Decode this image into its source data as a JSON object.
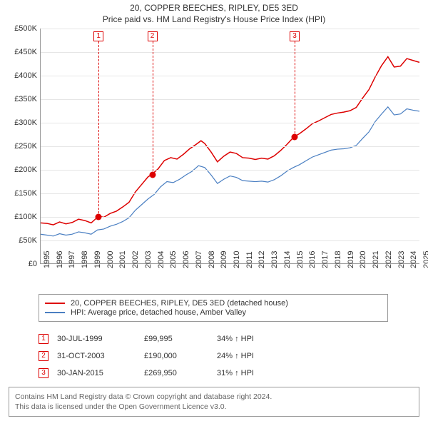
{
  "title": {
    "line1": "20, COPPER BEECHES, RIPLEY, DE5 3ED",
    "line2": "Price paid vs. HM Land Registry's House Price Index (HPI)"
  },
  "chart": {
    "type": "line",
    "x_start_year": 1995,
    "x_end_year": 2025,
    "x_ticks": [
      1995,
      1996,
      1997,
      1998,
      1999,
      2000,
      2001,
      2002,
      2003,
      2004,
      2005,
      2006,
      2007,
      2008,
      2009,
      2010,
      2011,
      2012,
      2013,
      2014,
      2015,
      2016,
      2017,
      2018,
      2019,
      2020,
      2021,
      2022,
      2023,
      2024,
      2025
    ],
    "y_min": 0,
    "y_max": 500000,
    "y_tick_step": 50000,
    "y_tick_labels": [
      "£0",
      "£50K",
      "£100K",
      "£150K",
      "£200K",
      "£250K",
      "£300K",
      "£350K",
      "£400K",
      "£450K",
      "£500K"
    ],
    "grid_color": "#e6e6e6",
    "axis_color": "#999999",
    "background_color": "#ffffff",
    "series": [
      {
        "name": "property_price",
        "label": "20, COPPER BEECHES, RIPLEY, DE5 3ED (detached house)",
        "color": "#dd0000",
        "line_width": 1.5,
        "data": [
          [
            1995.0,
            86
          ],
          [
            1995.5,
            85
          ],
          [
            1996.0,
            82
          ],
          [
            1996.5,
            88
          ],
          [
            1997.0,
            84
          ],
          [
            1997.5,
            87
          ],
          [
            1998.0,
            94
          ],
          [
            1998.5,
            91
          ],
          [
            1999.0,
            86
          ],
          [
            1999.58,
            100
          ],
          [
            2000.0,
            98
          ],
          [
            2000.5,
            106
          ],
          [
            2001.0,
            111
          ],
          [
            2001.5,
            120
          ],
          [
            2002.0,
            130
          ],
          [
            2002.5,
            152
          ],
          [
            2003.0,
            168
          ],
          [
            2003.5,
            184
          ],
          [
            2003.83,
            190
          ],
          [
            2004.3,
            201
          ],
          [
            2004.8,
            219
          ],
          [
            2005.3,
            225
          ],
          [
            2005.8,
            222
          ],
          [
            2006.3,
            232
          ],
          [
            2006.8,
            244
          ],
          [
            2007.3,
            253
          ],
          [
            2007.7,
            261
          ],
          [
            2008.0,
            255
          ],
          [
            2008.5,
            237
          ],
          [
            2009.0,
            216
          ],
          [
            2009.5,
            228
          ],
          [
            2010.0,
            237
          ],
          [
            2010.5,
            234
          ],
          [
            2011.0,
            225
          ],
          [
            2011.5,
            224
          ],
          [
            2012.0,
            221
          ],
          [
            2012.5,
            224
          ],
          [
            2013.0,
            222
          ],
          [
            2013.5,
            229
          ],
          [
            2014.0,
            240
          ],
          [
            2014.5,
            253
          ],
          [
            2015.08,
            270
          ],
          [
            2015.5,
            276
          ],
          [
            2016.0,
            286
          ],
          [
            2016.5,
            297
          ],
          [
            2017.0,
            303
          ],
          [
            2017.5,
            310
          ],
          [
            2018.0,
            317
          ],
          [
            2018.5,
            320
          ],
          [
            2019.0,
            322
          ],
          [
            2019.5,
            325
          ],
          [
            2020.0,
            332
          ],
          [
            2020.5,
            352
          ],
          [
            2021.0,
            370
          ],
          [
            2021.5,
            397
          ],
          [
            2022.0,
            421
          ],
          [
            2022.5,
            440
          ],
          [
            2023.0,
            418
          ],
          [
            2023.5,
            420
          ],
          [
            2024.0,
            436
          ],
          [
            2024.5,
            432
          ],
          [
            2025.0,
            428
          ]
        ]
      },
      {
        "name": "hpi",
        "label": "HPI: Average price, detached house, Amber Valley",
        "color": "#4a7fc2",
        "line_width": 1.2,
        "data": [
          [
            1995.0,
            62
          ],
          [
            1995.5,
            60
          ],
          [
            1996.0,
            58
          ],
          [
            1996.5,
            63
          ],
          [
            1997.0,
            60
          ],
          [
            1997.5,
            62
          ],
          [
            1998.0,
            67
          ],
          [
            1998.5,
            65
          ],
          [
            1999.0,
            62
          ],
          [
            1999.5,
            71
          ],
          [
            2000.0,
            73
          ],
          [
            2000.5,
            79
          ],
          [
            2001.0,
            83
          ],
          [
            2001.5,
            89
          ],
          [
            2002.0,
            97
          ],
          [
            2002.5,
            113
          ],
          [
            2003.0,
            125
          ],
          [
            2003.5,
            137
          ],
          [
            2004.0,
            147
          ],
          [
            2004.5,
            163
          ],
          [
            2005.0,
            174
          ],
          [
            2005.5,
            172
          ],
          [
            2006.0,
            179
          ],
          [
            2006.5,
            188
          ],
          [
            2007.0,
            196
          ],
          [
            2007.5,
            208
          ],
          [
            2008.0,
            204
          ],
          [
            2008.5,
            188
          ],
          [
            2009.0,
            170
          ],
          [
            2009.5,
            179
          ],
          [
            2010.0,
            186
          ],
          [
            2010.5,
            183
          ],
          [
            2011.0,
            176
          ],
          [
            2011.5,
            175
          ],
          [
            2012.0,
            174
          ],
          [
            2012.5,
            175
          ],
          [
            2013.0,
            173
          ],
          [
            2013.5,
            178
          ],
          [
            2014.0,
            186
          ],
          [
            2014.5,
            196
          ],
          [
            2015.0,
            204
          ],
          [
            2015.5,
            210
          ],
          [
            2016.0,
            218
          ],
          [
            2016.5,
            226
          ],
          [
            2017.0,
            231
          ],
          [
            2017.5,
            236
          ],
          [
            2018.0,
            241
          ],
          [
            2018.5,
            243
          ],
          [
            2019.0,
            244
          ],
          [
            2019.5,
            246
          ],
          [
            2020.0,
            251
          ],
          [
            2020.5,
            266
          ],
          [
            2021.0,
            280
          ],
          [
            2021.5,
            302
          ],
          [
            2022.0,
            318
          ],
          [
            2022.5,
            333
          ],
          [
            2023.0,
            316
          ],
          [
            2023.5,
            318
          ],
          [
            2024.0,
            329
          ],
          [
            2024.5,
            326
          ],
          [
            2025.0,
            324
          ]
        ]
      }
    ],
    "sales": [
      {
        "n": "1",
        "year": 1999.58,
        "value": 99995,
        "date": "30-JUL-1999",
        "price": "£99,995",
        "pct": "34% ↑ HPI",
        "color": "#dd0000"
      },
      {
        "n": "2",
        "year": 2003.83,
        "value": 190000,
        "date": "31-OCT-2003",
        "price": "£190,000",
        "pct": "24% ↑ HPI",
        "color": "#dd0000"
      },
      {
        "n": "3",
        "year": 2015.08,
        "value": 269950,
        "date": "30-JAN-2015",
        "price": "£269,950",
        "pct": "31% ↑ HPI",
        "color": "#dd0000"
      }
    ]
  },
  "legend": {
    "series0": "20, COPPER BEECHES, RIPLEY, DE5 3ED (detached house)",
    "series1": "HPI: Average price, detached house, Amber Valley"
  },
  "footer": {
    "line1": "Contains HM Land Registry data © Crown copyright and database right 2024.",
    "line2": "This data is licensed under the Open Government Licence v3.0."
  }
}
